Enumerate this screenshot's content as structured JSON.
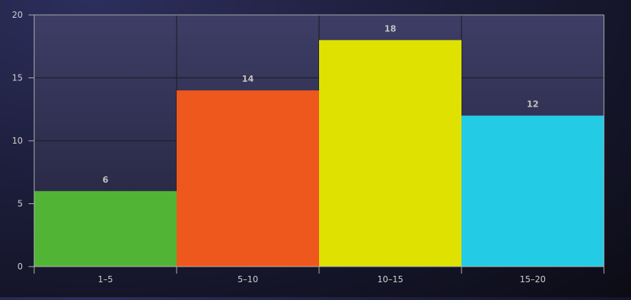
{
  "chart_data": {
    "type": "bar",
    "categories": [
      "1–5",
      "5–10",
      "10–15",
      "15–20"
    ],
    "values": [
      6,
      14,
      18,
      12
    ],
    "bar_colors": [
      "#52b435",
      "#ee581c",
      "#dfe100",
      "#24cbe5"
    ],
    "data_labels": [
      "6",
      "14",
      "18",
      "12"
    ],
    "title": "",
    "xlabel": "",
    "ylabel": "",
    "ylim": [
      0,
      20
    ],
    "yticks": [
      0,
      5,
      10,
      15,
      20
    ],
    "ytick_labels": [
      "0",
      "5",
      "10",
      "15",
      "20"
    ],
    "grid": true,
    "legend": "none"
  },
  "colors": {
    "axis": "#b4b4b4",
    "grid": "#1f1f2a",
    "tick_label": "#d0d0d0",
    "data_label": "#bfbfbf",
    "plot_fill": "#34345a"
  }
}
